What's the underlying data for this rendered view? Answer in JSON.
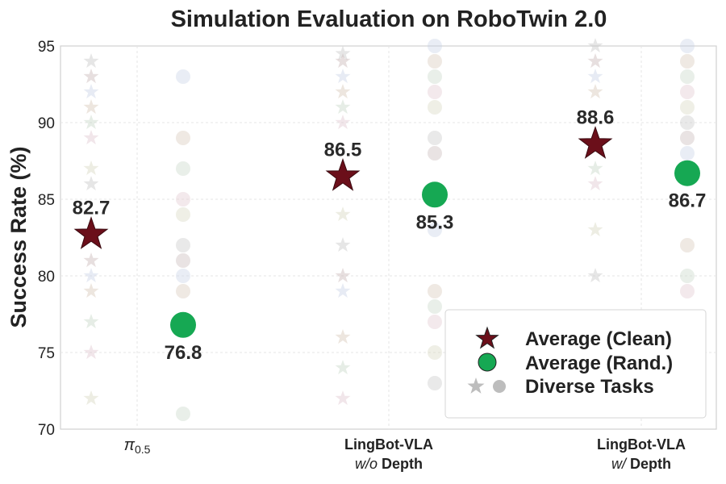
{
  "chart_data": {
    "type": "scatter",
    "title": "Simulation Evaluation on RoboTwin 2.0",
    "ylabel": "Success Rate (%)",
    "xlabel": "",
    "ylim": [
      70,
      95
    ],
    "yticks": [
      70,
      75,
      80,
      85,
      90,
      95
    ],
    "grid": true,
    "legend_position": "bottom-right",
    "categories": [
      {
        "line1": "π",
        "sub": "0.5",
        "line2": ""
      },
      {
        "line1": "LingBot-VLA",
        "line2_italic": "w/o",
        "line2_rest": " Depth"
      },
      {
        "line1": "LingBot-VLA",
        "line2_italic": "w/",
        "line2_rest": " Depth"
      }
    ],
    "series": [
      {
        "name": "Average (Clean)",
        "marker": "star",
        "color": "#6b0f1a",
        "values": [
          82.7,
          86.5,
          88.6
        ],
        "labels": [
          "82.7",
          "86.5",
          "88.6"
        ]
      },
      {
        "name": "Average (Rand.)",
        "marker": "circle",
        "color": "#16a853",
        "values": [
          76.8,
          85.3,
          86.7
        ],
        "labels": [
          "76.8",
          "85.3",
          "86.7"
        ]
      }
    ],
    "diverse_tasks": {
      "name": "Diverse Tasks",
      "clean": [
        [
          94,
          93,
          92,
          91,
          90,
          89,
          87,
          86,
          81,
          80,
          79,
          77,
          75,
          72
        ],
        [
          94.5,
          94,
          93,
          92,
          91,
          90,
          84,
          82,
          80,
          79,
          76,
          74,
          72
        ],
        [
          95,
          94,
          93,
          92,
          87,
          86,
          83,
          80
        ]
      ],
      "rand": [
        [
          93,
          89,
          87,
          85,
          84,
          82,
          81,
          80,
          79,
          71
        ],
        [
          95,
          94,
          93,
          92,
          91,
          89,
          88,
          83,
          79,
          78,
          77,
          75,
          73
        ],
        [
          95,
          94,
          93,
          92,
          91,
          90,
          89,
          88,
          82,
          80,
          79
        ]
      ]
    }
  },
  "legend": {
    "clean": "Average (Clean)",
    "rand": "Average (Rand.)",
    "diverse": "Diverse Tasks"
  }
}
